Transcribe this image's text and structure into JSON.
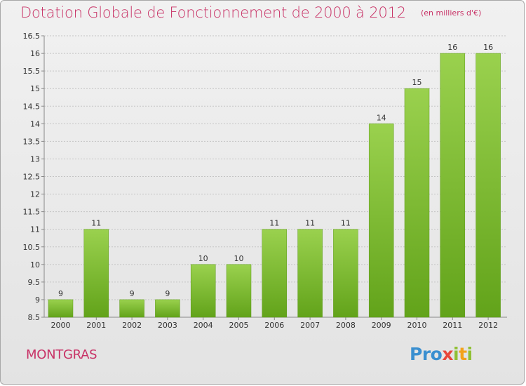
{
  "header": {
    "title": "Dotation Globale de Fonctionnement de 2000 à 2012",
    "unit": "(en milliers d'€)"
  },
  "footer": {
    "commune": "MONTGRAS",
    "logo_text": "Proxiti",
    "logo_letters": [
      {
        "char": "P",
        "color": "#3a8fd0"
      },
      {
        "char": "r",
        "color": "#3a8fd0"
      },
      {
        "char": "o",
        "color": "#3a8fd0"
      },
      {
        "char": "x",
        "color": "#e8463a"
      },
      {
        "char": "i",
        "color": "#8fc033"
      },
      {
        "char": "t",
        "color": "#f3a21b"
      },
      {
        "char": "i",
        "color": "#8fc033"
      }
    ]
  },
  "colors": {
    "title": "#c83266",
    "bar_light": "#9ad14e",
    "bar_dark": "#62a31a",
    "grid": "#c4c4c4",
    "axis_text": "#333333"
  },
  "chart_data": {
    "type": "bar",
    "title": "Dotation Globale de Fonctionnement de 2000 à 2012",
    "subtitle": "(en milliers d'€)",
    "xlabel": "",
    "ylabel": "",
    "categories": [
      "2000",
      "2001",
      "2002",
      "2003",
      "2004",
      "2005",
      "2006",
      "2007",
      "2008",
      "2009",
      "2010",
      "2011",
      "2012"
    ],
    "values": [
      9,
      11,
      9,
      9,
      10,
      10,
      11,
      11,
      11,
      14,
      15,
      16,
      16
    ],
    "data_labels": [
      "9",
      "11",
      "9",
      "9",
      "10",
      "10",
      "11",
      "11",
      "11",
      "14",
      "15",
      "16",
      "16"
    ],
    "ylim": [
      8.5,
      16.5
    ],
    "yticks": [
      "8.5",
      "9",
      "9.5",
      "10",
      "10.5",
      "11",
      "11.5",
      "12",
      "12.5",
      "13",
      "13.5",
      "14",
      "14.5",
      "15",
      "15.5",
      "16",
      "16.5"
    ],
    "grid": true,
    "legend": "none"
  }
}
